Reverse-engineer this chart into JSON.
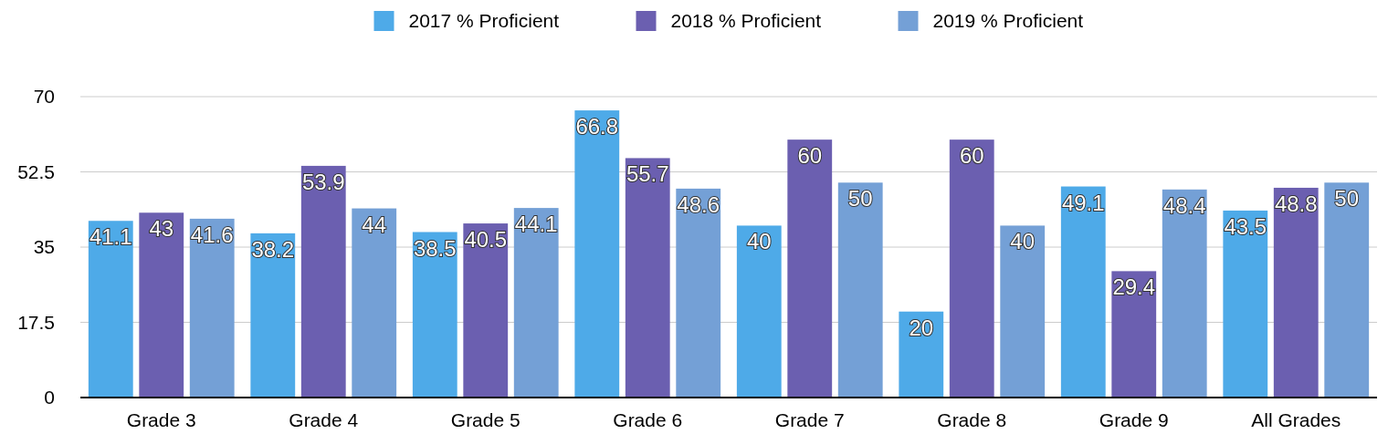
{
  "chart_data": {
    "type": "bar",
    "categories": [
      "Grade 3",
      "Grade 4",
      "Grade 5",
      "Grade 6",
      "Grade 7",
      "Grade 8",
      "Grade 9",
      "All Grades"
    ],
    "series": [
      {
        "name": "2017 % Proficient",
        "color": "#4eaae8",
        "values": [
          41.1,
          38.2,
          38.5,
          66.8,
          40,
          20,
          49.1,
          43.5
        ]
      },
      {
        "name": "2018 % Proficient",
        "color": "#6b5fb0",
        "values": [
          43,
          53.9,
          40.5,
          55.7,
          60,
          60,
          29.4,
          48.8
        ]
      },
      {
        "name": "2019 % Proficient",
        "color": "#74a0d6",
        "values": [
          41.6,
          44,
          44.1,
          48.6,
          50,
          40,
          48.4,
          50
        ]
      }
    ],
    "ylim": [
      0,
      70
    ],
    "yticks": [
      0,
      17.5,
      35,
      52.5,
      70
    ],
    "grid": "y",
    "legend": "top",
    "data_labels": true
  }
}
